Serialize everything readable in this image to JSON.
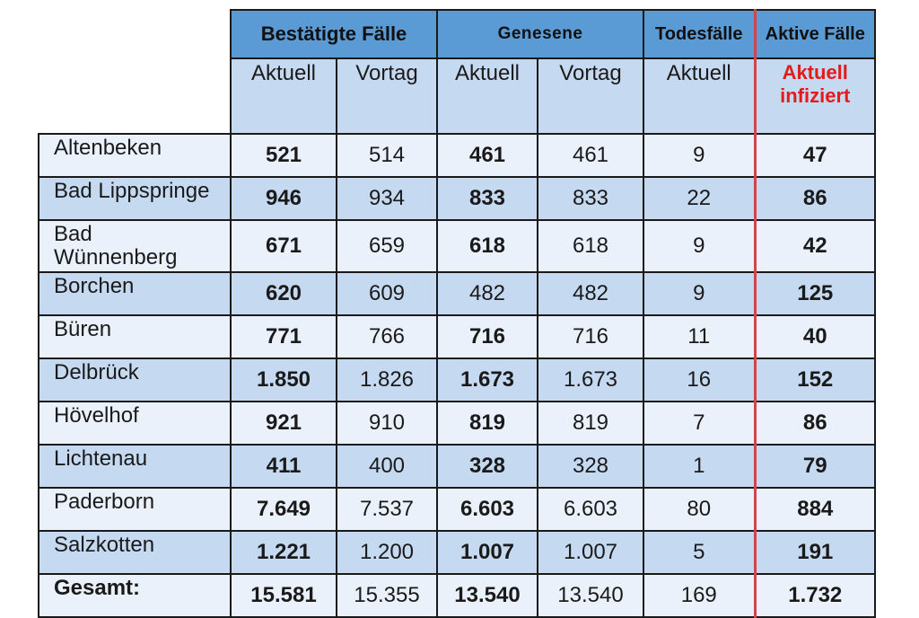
{
  "header": {
    "groups": {
      "confirmed": "Bestätigte Fälle",
      "recovered": "Genesene",
      "deaths": "Todesfälle",
      "active": "Aktive Fälle"
    },
    "sub": {
      "c_current": "Aktuell",
      "c_prev": "Vortag",
      "r_current": "Aktuell",
      "r_prev": "Vortag",
      "d_current": "Aktuell",
      "a_line1": "Aktuell",
      "a_line2": "infiziert"
    }
  },
  "rows": [
    {
      "name": "Altenbeken",
      "c_cur": "521",
      "c_prev": "514",
      "r_cur": "461",
      "r_prev": "461",
      "deaths": "9",
      "active": "47"
    },
    {
      "name": "Bad Lippspringe",
      "c_cur": "946",
      "c_prev": "934",
      "r_cur": "833",
      "r_prev": "833",
      "deaths": "22",
      "active": "86"
    },
    {
      "name": "Bad Wünnenberg",
      "c_cur": "671",
      "c_prev": "659",
      "r_cur": "618",
      "r_prev": "618",
      "deaths": "9",
      "active": "42"
    },
    {
      "name": "Borchen",
      "c_cur": "620",
      "c_prev": "609",
      "r_cur": "482",
      "r_prev": "482",
      "deaths": "9",
      "active": "125"
    },
    {
      "name": "Büren",
      "c_cur": "771",
      "c_prev": "766",
      "r_cur": "716",
      "r_prev": "716",
      "deaths": "11",
      "active": "40"
    },
    {
      "name": "Delbrück",
      "c_cur": "1.850",
      "c_prev": "1.826",
      "r_cur": "1.673",
      "r_prev": "1.673",
      "deaths": "16",
      "active": "152"
    },
    {
      "name": "Hövelhof",
      "c_cur": "921",
      "c_prev": "910",
      "r_cur": "819",
      "r_prev": "819",
      "deaths": "7",
      "active": "86"
    },
    {
      "name": "Lichtenau",
      "c_cur": "411",
      "c_prev": "400",
      "r_cur": "328",
      "r_prev": "328",
      "deaths": "1",
      "active": "79"
    },
    {
      "name": "Paderborn",
      "c_cur": "7.649",
      "c_prev": "7.537",
      "r_cur": "6.603",
      "r_prev": "6.603",
      "deaths": "80",
      "active": "884"
    },
    {
      "name": "Salzkotten",
      "c_cur": "1.221",
      "c_prev": "1.200",
      "r_cur": "1.007",
      "r_prev": "1.007",
      "deaths": "5",
      "active": "191"
    }
  ],
  "total": {
    "name": "Gesamt:",
    "c_cur": "15.581",
    "c_prev": "15.355",
    "r_cur": "13.540",
    "r_prev": "13.540",
    "deaths": "169",
    "active": "1.732"
  },
  "colors": {
    "header_blue": "#5b9bd5",
    "row_light": "#eaf1fb",
    "row_dark": "#c5d9f1",
    "highlight_red": "#e31b1b"
  }
}
